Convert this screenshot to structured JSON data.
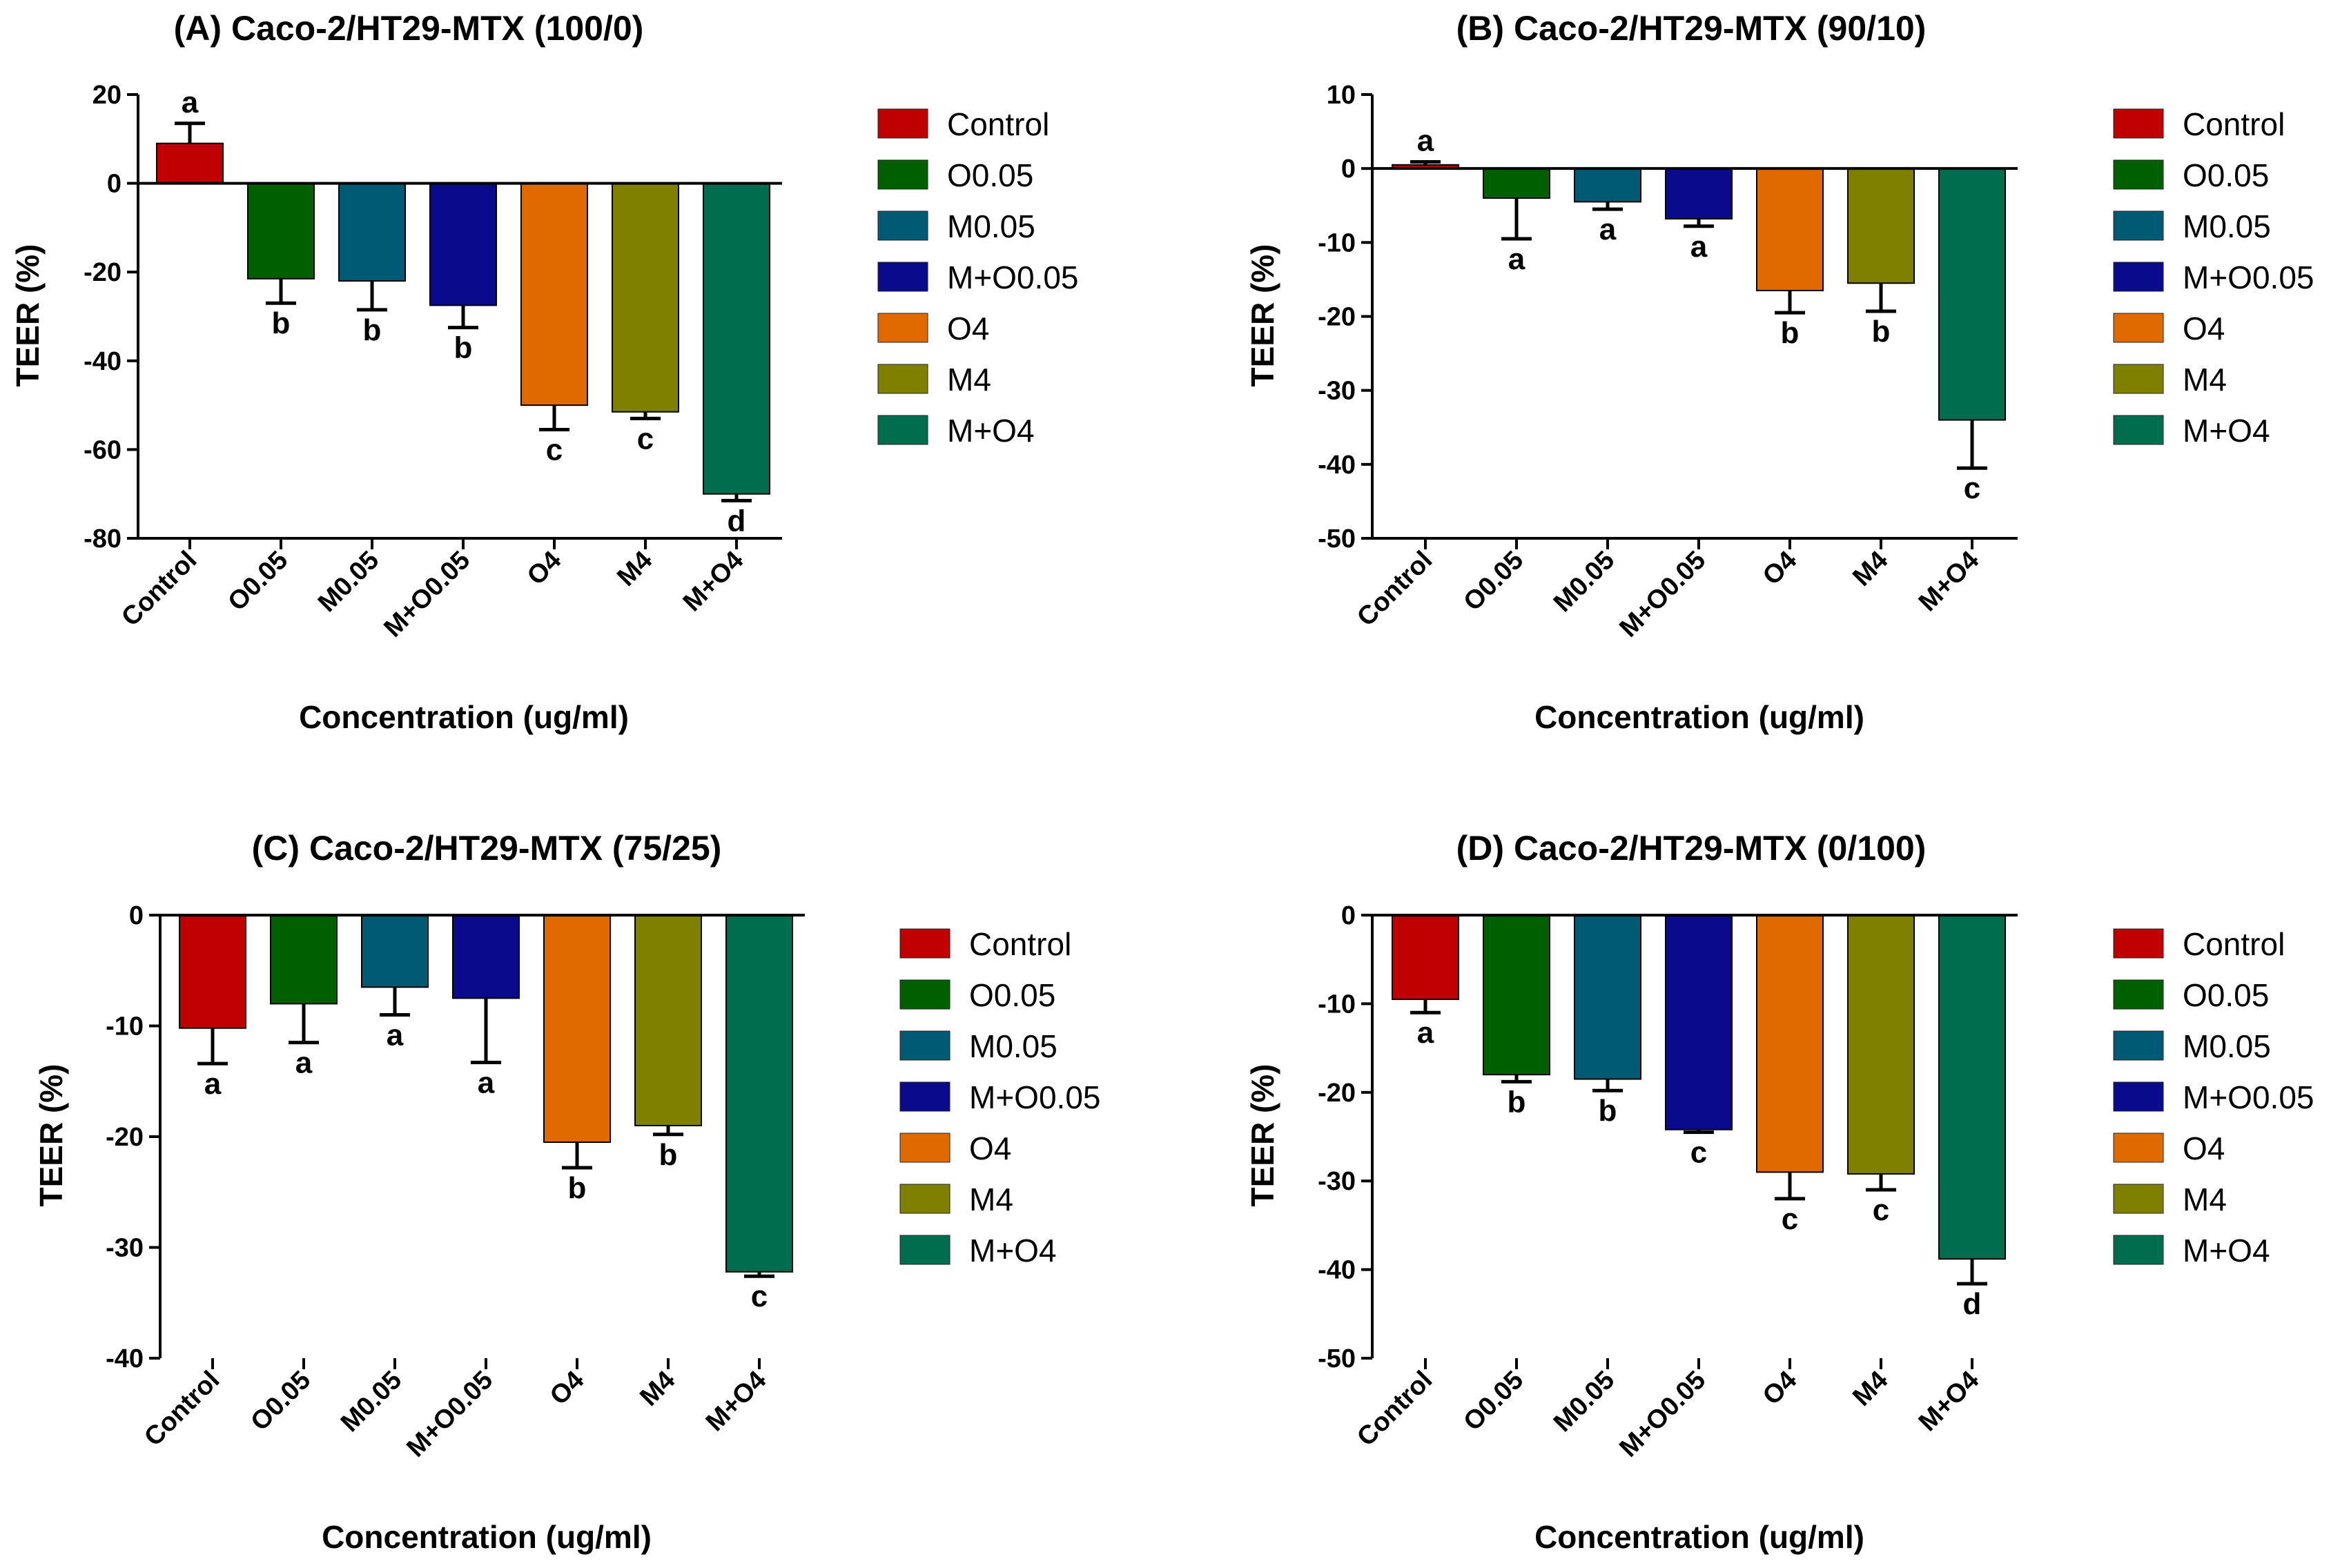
{
  "colors": {
    "Control": "#c00000",
    "O0.05": "#006000",
    "M0.05": "#005a73",
    "M+O0.05": "#0a0a8c",
    "O4": "#e06a00",
    "M4": "#808000",
    "M+O4": "#006d4e",
    "axis": "#000000"
  },
  "chart_data": [
    {
      "type": "bar",
      "title": "(A) Caco-2/HT29-MTX (100/0)",
      "xlabel": "Concentration (ug/ml)",
      "ylabel": "TEER (%)",
      "categories": [
        "Control",
        "O0.05",
        "M0.05",
        "M+O0.05",
        "O4",
        "M4",
        "M+O4"
      ],
      "values": [
        9,
        -21.5,
        -22,
        -27.5,
        -50,
        -51.5,
        -70
      ],
      "errors": [
        4.5,
        5.5,
        6.5,
        5,
        5.5,
        1.5,
        1.5
      ],
      "letters": [
        "a",
        "b",
        "b",
        "b",
        "c",
        "c",
        "d"
      ],
      "ylim": [
        -80,
        20
      ],
      "yticks": [
        20,
        0,
        -20,
        -40,
        -60,
        -80
      ],
      "legend": [
        "Control",
        "O0.05",
        "M0.05",
        "M+O0.05",
        "O4",
        "M4",
        "M+O4"
      ]
    },
    {
      "type": "bar",
      "title": "(B) Caco-2/HT29-MTX (90/10)",
      "xlabel": "Concentration (ug/ml)",
      "ylabel": "TEER (%)",
      "categories": [
        "Control",
        "O0.05",
        "M0.05",
        "M+O0.05",
        "O4",
        "M4",
        "M+O4"
      ],
      "values": [
        0.5,
        -4,
        -4.5,
        -6.8,
        -16.5,
        -15.5,
        -34
      ],
      "errors": [
        0.4,
        5.5,
        1,
        1,
        3,
        3.8,
        6.5
      ],
      "letters": [
        "a",
        "a",
        "a",
        "a",
        "b",
        "b",
        "c"
      ],
      "ylim": [
        -50,
        10
      ],
      "yticks": [
        10,
        0,
        -10,
        -20,
        -30,
        -40,
        -50
      ],
      "legend": [
        "Control",
        "O0.05",
        "M0.05",
        "M+O0.05",
        "O4",
        "M4",
        "M+O4"
      ]
    },
    {
      "type": "bar",
      "title": "(C) Caco-2/HT29-MTX (75/25)",
      "xlabel": "Concentration (ug/ml)",
      "ylabel": "TEER (%)",
      "categories": [
        "Control",
        "O0.05",
        "M0.05",
        "M+O0.05",
        "O4",
        "M4",
        "M+O4"
      ],
      "values": [
        -10.2,
        -8,
        -6.5,
        -7.5,
        -20.5,
        -19,
        -32.2
      ],
      "errors": [
        3.2,
        3.5,
        2.5,
        5.8,
        2.3,
        0.8,
        0.4
      ],
      "letters": [
        "a",
        "a",
        "a",
        "a",
        "b",
        "b",
        "c"
      ],
      "ylim": [
        -40,
        0
      ],
      "yticks": [
        0,
        -10,
        -20,
        -30,
        -40
      ],
      "legend": [
        "Control",
        "O0.05",
        "M0.05",
        "M+O0.05",
        "O4",
        "M4",
        "M+O4"
      ]
    },
    {
      "type": "bar",
      "title": "(D) Caco-2/HT29-MTX (0/100)",
      "xlabel": "Concentration (ug/ml)",
      "ylabel": "TEER (%)",
      "categories": [
        "Control",
        "O0.05",
        "M0.05",
        "M+O0.05",
        "O4",
        "M4",
        "M+O4"
      ],
      "values": [
        -9.5,
        -18,
        -18.5,
        -24.2,
        -29,
        -29.2,
        -38.8
      ],
      "errors": [
        1.5,
        0.8,
        1.3,
        0.3,
        3,
        1.8,
        2.8
      ],
      "letters": [
        "a",
        "b",
        "b",
        "c",
        "c",
        "c",
        "d"
      ],
      "ylim": [
        -50,
        0
      ],
      "yticks": [
        0,
        -10,
        -20,
        -30,
        -40,
        -50
      ],
      "legend": [
        "Control",
        "O0.05",
        "M0.05",
        "M+O0.05",
        "O4",
        "M4",
        "M+O4"
      ]
    }
  ]
}
